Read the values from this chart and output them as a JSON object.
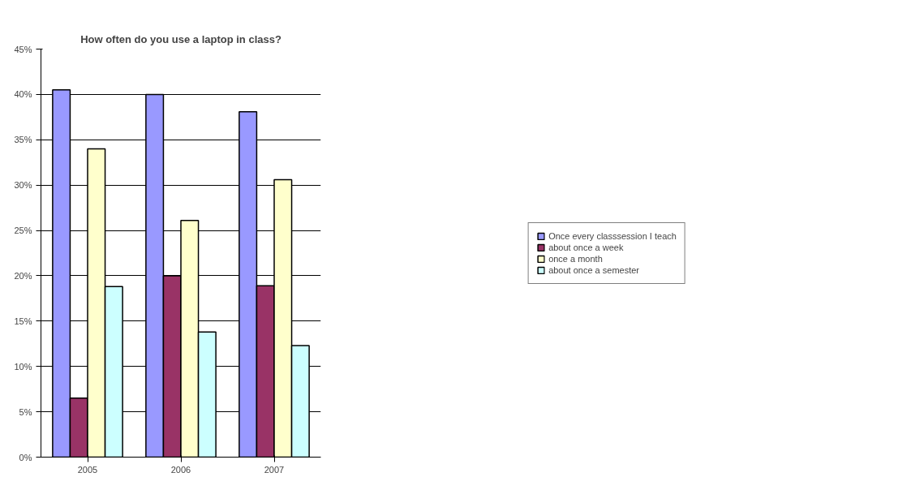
{
  "chart_data": {
    "type": "bar",
    "title": "How often do you use a laptop in class?",
    "categories": [
      "2005",
      "2006",
      "2007"
    ],
    "series": [
      {
        "name": "Once every classsession I teach",
        "color": "#9999ff",
        "values": [
          40.5,
          40,
          38.1
        ]
      },
      {
        "name": "about once a week",
        "color": "#993366",
        "values": [
          6.5,
          20,
          18.9
        ]
      },
      {
        "name": "once a month",
        "color": "#ffffcc",
        "values": [
          34,
          26.1,
          30.6
        ]
      },
      {
        "name": "about once a semester",
        "color": "#ccffff",
        "values": [
          18.8,
          13.8,
          12.3
        ]
      }
    ],
    "ylim": [
      0,
      45
    ],
    "yticks": [
      {
        "value": 0,
        "label": "0%"
      },
      {
        "value": 5,
        "label": "5%"
      },
      {
        "value": 10,
        "label": "10%"
      },
      {
        "value": 15,
        "label": "15%"
      },
      {
        "value": 20,
        "label": "20%"
      },
      {
        "value": 25,
        "label": "25%"
      },
      {
        "value": 30,
        "label": "30%"
      },
      {
        "value": 35,
        "label": "35%"
      },
      {
        "value": 40,
        "label": "40%"
      },
      {
        "value": 45,
        "label": "45%"
      }
    ],
    "grid": "y",
    "legend": "right"
  }
}
